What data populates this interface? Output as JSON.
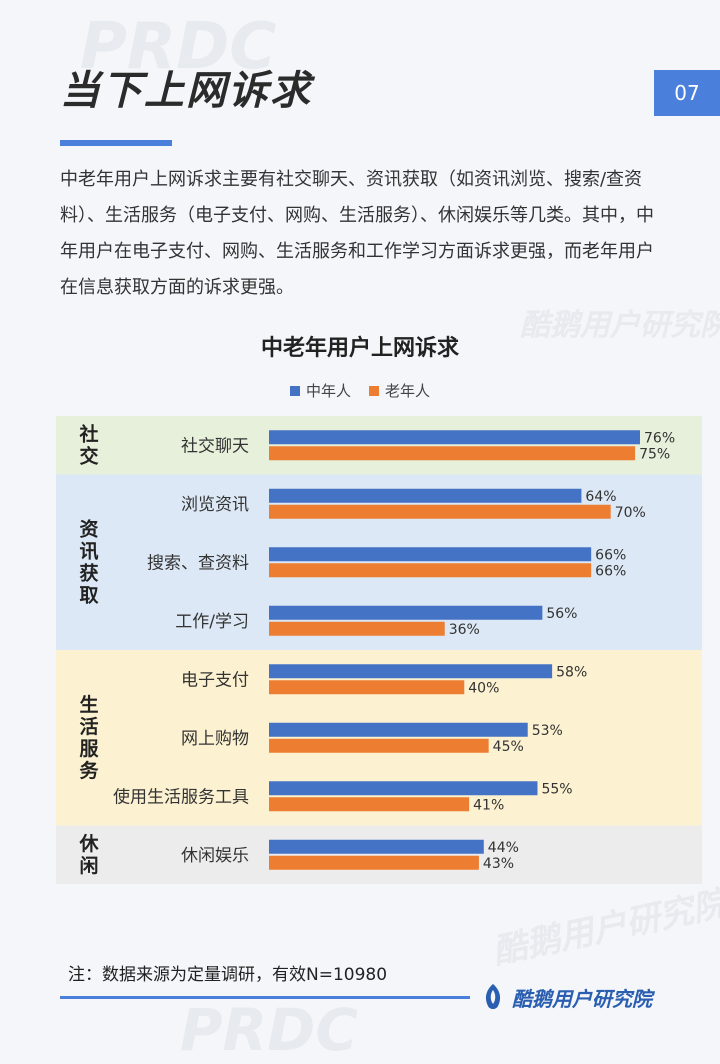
{
  "header": {
    "title": "当下上网诉求",
    "page_number": "07"
  },
  "intro": "中老年用户上网诉求主要有社交聊天、资讯获取（如资讯浏览、搜索/查资料）、生活服务（电子支付、网购、生活服务）、休闲娱乐等几类。其中，中年用户在电子支付、网购、生活服务和工作学习方面诉求更强，而老年用户在信息获取方面的诉求更强。",
  "chart_data": {
    "type": "bar",
    "orientation": "horizontal",
    "title": "中老年用户上网诉求",
    "legend_position": "top",
    "categories": [
      "社交聊天",
      "浏览资讯",
      "搜索、查资料",
      "工作/学习",
      "电子支付",
      "网上购物",
      "使用生活服务工具",
      "休闲娱乐"
    ],
    "series": [
      {
        "name": "中年人",
        "color": "#4472c4",
        "values": [
          76,
          64,
          66,
          56,
          58,
          53,
          55,
          44
        ]
      },
      {
        "name": "老年人",
        "color": "#ed7d31",
        "values": [
          75,
          70,
          66,
          36,
          40,
          45,
          41,
          43
        ]
      }
    ],
    "value_suffix": "%",
    "xlim": [
      0,
      100
    ],
    "groups": [
      {
        "label": "社交",
        "color": "#e6f0da",
        "members": 1
      },
      {
        "label": "资讯获取",
        "color": "#dce8f5",
        "members": 3
      },
      {
        "label": "生活服务",
        "color": "#fcf2d2",
        "members": 3
      },
      {
        "label": "休闲",
        "color": "#ececec",
        "members": 1
      }
    ]
  },
  "footnote": "注：数据来源为定量调研，有效N=10980",
  "logo_text": "酷鹅用户研究院",
  "watermarks": [
    "PRDC",
    "酷鹅用户研究院",
    "酷鹅用户研究院",
    "PRDC"
  ]
}
